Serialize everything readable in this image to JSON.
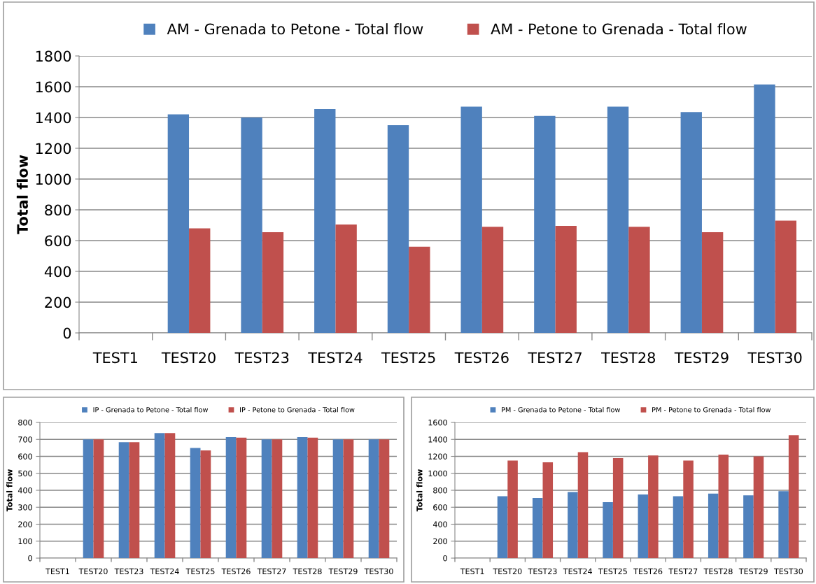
{
  "chart_data": [
    {
      "type": "bar",
      "ylabel": "Total flow",
      "categories": [
        "TEST1",
        "TEST20",
        "TEST23",
        "TEST24",
        "TEST25",
        "TEST26",
        "TEST27",
        "TEST28",
        "TEST29",
        "TEST30"
      ],
      "series": [
        {
          "name": "AM - Grenada to Petone - Total flow",
          "color": "#4f81bd",
          "values": [
            null,
            1420,
            1400,
            1455,
            1350,
            1470,
            1410,
            1470,
            1435,
            1615
          ]
        },
        {
          "name": "AM - Petone to Grenada - Total flow",
          "color": "#c0504d",
          "values": [
            null,
            680,
            655,
            705,
            560,
            690,
            695,
            690,
            655,
            730
          ]
        }
      ],
      "ylim": [
        0,
        1800
      ],
      "yticks": [
        0,
        200,
        400,
        600,
        800,
        1000,
        1200,
        1400,
        1600,
        1800
      ],
      "grid": "y",
      "legend": "top"
    },
    {
      "type": "bar",
      "ylabel": "Total flow",
      "categories": [
        "TEST1",
        "TEST20",
        "TEST23",
        "TEST24",
        "TEST25",
        "TEST26",
        "TEST27",
        "TEST28",
        "TEST29",
        "TEST30"
      ],
      "series": [
        {
          "name": "IP - Grenada to Petone - Total flow",
          "color": "#4f81bd",
          "values": [
            null,
            700,
            683,
            737,
            650,
            713,
            700,
            713,
            700,
            700
          ]
        },
        {
          "name": "IP - Petone to Grenada - Total flow",
          "color": "#c0504d",
          "values": [
            null,
            700,
            683,
            737,
            635,
            710,
            700,
            710,
            700,
            700
          ]
        }
      ],
      "ylim": [
        0,
        800
      ],
      "yticks": [
        0,
        100,
        200,
        300,
        400,
        500,
        600,
        700,
        800
      ],
      "grid": "y",
      "legend": "top"
    },
    {
      "type": "bar",
      "ylabel": "Total flow",
      "categories": [
        "TEST1",
        "TEST20",
        "TEST23",
        "TEST24",
        "TEST25",
        "TEST26",
        "TEST27",
        "TEST28",
        "TEST29",
        "TEST30"
      ],
      "series": [
        {
          "name": "PM - Grenada to Petone - Total flow",
          "color": "#4f81bd",
          "values": [
            null,
            730,
            710,
            780,
            660,
            750,
            730,
            760,
            740,
            790
          ]
        },
        {
          "name": "PM - Petone to Grenada - Total flow",
          "color": "#c0504d",
          "values": [
            null,
            1150,
            1130,
            1250,
            1180,
            1210,
            1150,
            1220,
            1200,
            1450
          ]
        }
      ],
      "ylim": [
        0,
        1600
      ],
      "yticks": [
        0,
        200,
        400,
        600,
        800,
        1000,
        1200,
        1400,
        1600
      ],
      "grid": "y",
      "legend": "top"
    }
  ]
}
